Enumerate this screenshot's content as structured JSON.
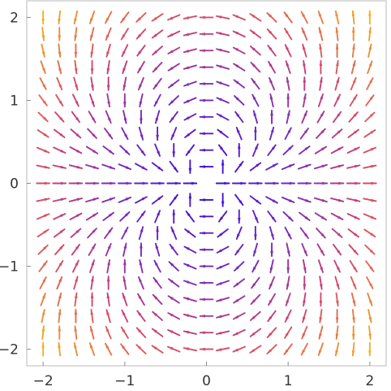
{
  "chart_data": {
    "type": "vector_field",
    "title": "",
    "xlabel": "",
    "ylabel": "",
    "xlim": [
      -2.2,
      2.2
    ],
    "ylim": [
      -2.2,
      2.2
    ],
    "grid": false,
    "x_ticks": [
      {
        "value": -2,
        "label": "−2"
      },
      {
        "value": -1,
        "label": "−1"
      },
      {
        "value": 0,
        "label": "0"
      },
      {
        "value": 1,
        "label": "1"
      },
      {
        "value": 2,
        "label": "2"
      }
    ],
    "y_ticks": [
      {
        "value": -2,
        "label": "−2"
      },
      {
        "value": -1,
        "label": "−1"
      },
      {
        "value": 0,
        "label": "0"
      },
      {
        "value": 1,
        "label": "1"
      },
      {
        "value": 2,
        "label": "2"
      }
    ],
    "field": {
      "vector_function": [
        "x^2 - y^2",
        "2xy"
      ],
      "normalized_arrows": true,
      "sample_count_x": 21,
      "sample_count_y": 21,
      "x_range": [
        -2,
        2
      ],
      "y_range": [
        -2,
        2
      ]
    },
    "color_scale": {
      "encodes": "magnitude",
      "stops": [
        {
          "position": 0.0,
          "color": "#2f0bdb"
        },
        {
          "position": 0.45,
          "color": "#7a2db8"
        },
        {
          "position": 0.72,
          "color": "#d4466d"
        },
        {
          "position": 1.0,
          "color": "#f6b21e"
        }
      ]
    }
  }
}
